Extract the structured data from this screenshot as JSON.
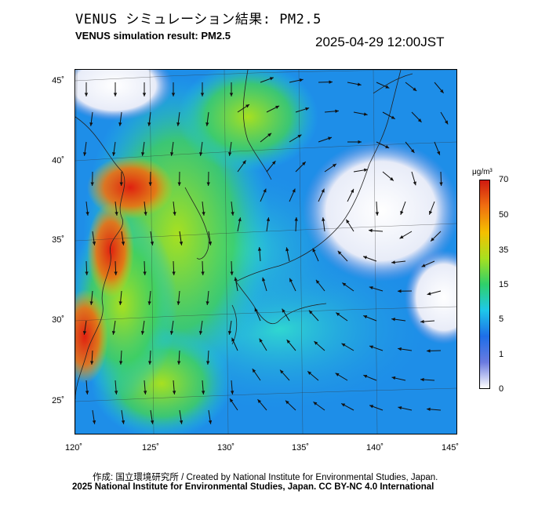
{
  "header": {
    "title_jp": "VENUS シミュレーション結果: PM2.5",
    "title_en": "VENUS simulation result: PM2.5",
    "timestamp": "2025-04-29 12:00JST"
  },
  "map": {
    "lat_labels": [
      "45˚",
      "40˚",
      "35˚",
      "30˚",
      "25˚"
    ],
    "lon_labels": [
      "120˚",
      "125˚",
      "130˚",
      "135˚",
      "140˚",
      "145˚"
    ]
  },
  "colorbar": {
    "unit": "μg/m³",
    "ticks": [
      "70",
      "50",
      "35",
      "15",
      "5",
      "1",
      "0"
    ],
    "colors": [
      "#ffffff",
      "#6a7ae0",
      "#1e6ee8",
      "#1ec8ea",
      "#2fd06a",
      "#a8e020",
      "#f5c000",
      "#f07010",
      "#d01a10"
    ]
  },
  "footer": {
    "credit_jp": "作成: 国立環境研究所 / Created by National Institute for Environmental Studies, Japan.",
    "credit_en": "2025 National Institute for Environmental Studies, Japan. CC BY-NC 4.0 International"
  }
}
